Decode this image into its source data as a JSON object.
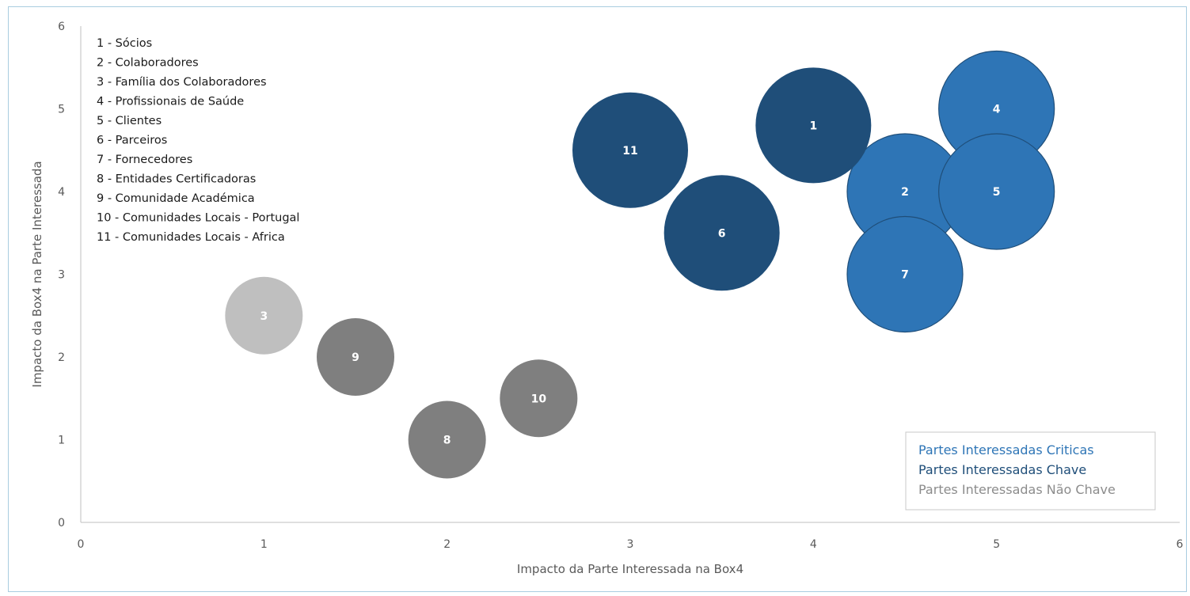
{
  "chart_data": {
    "type": "scatter",
    "subtype": "bubble",
    "xlabel": "Impacto da Parte Interessada na Box4",
    "ylabel": "Impacto da Box4 na Parte Interessada",
    "xlim": [
      0,
      6
    ],
    "ylim": [
      0,
      6
    ],
    "xticks": [
      "0",
      "1",
      "2",
      "3",
      "4",
      "5",
      "6"
    ],
    "yticks": [
      "0",
      "1",
      "2",
      "3",
      "4",
      "5",
      "6"
    ],
    "grid": false,
    "legend_position": "bottom-right",
    "series": [
      {
        "name": "Partes Interessadas Criticas",
        "color": "#2e75b6",
        "points": [
          {
            "label": "4",
            "x": 5.0,
            "y": 5.0
          },
          {
            "label": "2",
            "x": 4.5,
            "y": 4.0
          },
          {
            "label": "7",
            "x": 4.5,
            "y": 3.0
          },
          {
            "label": "5",
            "x": 5.0,
            "y": 4.0
          }
        ]
      },
      {
        "name": "Partes Interessadas Chave",
        "color": "#1f4e79",
        "points": [
          {
            "label": "1",
            "x": 4.0,
            "y": 4.8
          },
          {
            "label": "11",
            "x": 3.0,
            "y": 4.5
          },
          {
            "label": "6",
            "x": 3.5,
            "y": 3.5
          }
        ]
      },
      {
        "name": "Partes Interessadas Não Chave",
        "color": "#7f7f7f",
        "points": [
          {
            "label": "3",
            "x": 1.0,
            "y": 2.5,
            "color": "#bfbfbf"
          },
          {
            "label": "9",
            "x": 1.5,
            "y": 2.0
          },
          {
            "label": "10",
            "x": 2.5,
            "y": 1.5
          },
          {
            "label": "8",
            "x": 2.0,
            "y": 1.0
          }
        ]
      }
    ],
    "legend_colors": [
      "#2e75b6",
      "#1f4e79",
      "#8c8c8c"
    ],
    "key_list": [
      "1 - Sócios",
      "2 - Colaboradores",
      "3 - Família dos Colaboradores",
      "4 - Profissionais de Saúde",
      "5 - Clientes",
      "6 - Parceiros",
      "7 - Fornecedores",
      "8 - Entidades Certificadoras",
      "9 - Comunidade Académica",
      "10 - Comunidades Locais - Portugal",
      "11 - Comunidades Locais - Africa"
    ]
  }
}
